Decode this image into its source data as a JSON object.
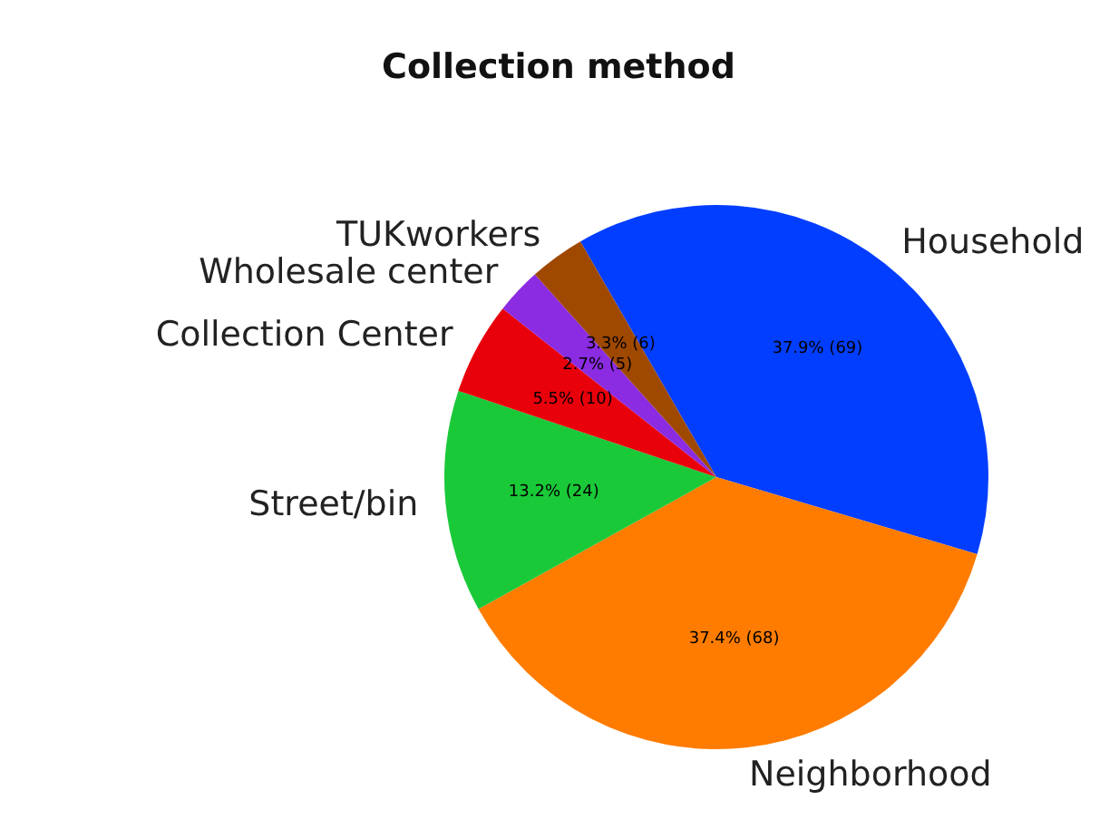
{
  "chart_data": {
    "type": "pie",
    "title": "Collection method",
    "categories": [
      "Household",
      "Neighborhood",
      "Street/bin",
      "Collection Center",
      "Wholesale center",
      "TUKworkers"
    ],
    "values": [
      69,
      68,
      24,
      10,
      5,
      6
    ],
    "value_labels": [
      "37.9% (69)",
      "37.4% (68)",
      "13.2% (24)",
      "5.5% (10)",
      "2.7% (5)",
      "3.3% (6)"
    ],
    "colors": [
      "#023eff",
      "#ff7c00",
      "#1ac938",
      "#e8000b",
      "#8b2be2",
      "#9f4800"
    ]
  }
}
